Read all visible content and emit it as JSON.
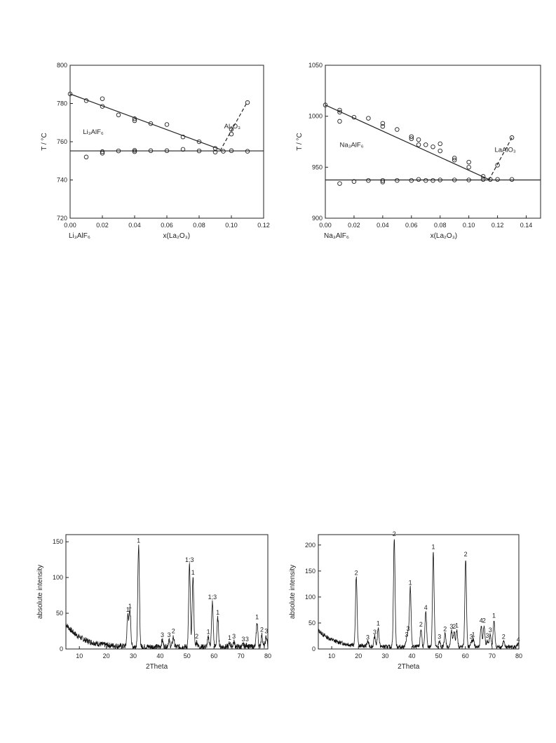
{
  "chart_data": [
    {
      "id": "li",
      "type": "scatter",
      "title": "",
      "xlabel": "x(La₂O₃)",
      "ylabel": "T / °C",
      "origin_label": "Li₃AlF₆",
      "xlim": [
        0,
        0.12
      ],
      "ylim": [
        720,
        800
      ],
      "xticks": [
        "0.00",
        "0.02",
        "0.04",
        "0.06",
        "0.08",
        "0.10",
        "0.12"
      ],
      "yticks": [
        "720",
        "740",
        "760",
        "780",
        "800"
      ],
      "annotations": [
        {
          "text": "Li₃AlF₆",
          "x": 0.008,
          "y": 764
        },
        {
          "text": "Al₂O₃",
          "x": 0.0955,
          "y": 767
        }
      ],
      "series": [
        {
          "name": "liquidus",
          "points": [
            [
              0.0,
              785
            ],
            [
              0.01,
              781.5
            ],
            [
              0.02,
              782.5
            ],
            [
              0.02,
              778.5
            ],
            [
              0.03,
              774
            ],
            [
              0.04,
              772
            ],
            [
              0.04,
              771
            ],
            [
              0.05,
              769.5
            ],
            [
              0.06,
              769
            ],
            [
              0.07,
              762.5
            ],
            [
              0.08,
              760
            ],
            [
              0.09,
              756.5
            ],
            [
              0.1,
              766.5
            ],
            [
              0.1,
              764
            ],
            [
              0.11,
              780.5
            ]
          ]
        },
        {
          "name": "eutectic",
          "points": [
            [
              0.01,
              752
            ],
            [
              0.02,
              754
            ],
            [
              0.02,
              754.8
            ],
            [
              0.03,
              755.2
            ],
            [
              0.04,
              754.8
            ],
            [
              0.04,
              755.5
            ],
            [
              0.05,
              755.3
            ],
            [
              0.06,
              755.3
            ],
            [
              0.07,
              756
            ],
            [
              0.08,
              755.2
            ],
            [
              0.09,
              754.6
            ],
            [
              0.095,
              755
            ],
            [
              0.1,
              755.3
            ],
            [
              0.11,
              755
            ]
          ]
        }
      ],
      "lines": [
        {
          "style": "solid",
          "x": [
            0.0,
            0.093
          ],
          "y": [
            785,
            756
          ]
        },
        {
          "style": "solid",
          "x": [
            0.0,
            0.12
          ],
          "y": [
            755.2,
            755.2
          ]
        },
        {
          "style": "dashed",
          "x": [
            0.093,
            0.11
          ],
          "y": [
            755.2,
            781
          ]
        }
      ]
    },
    {
      "id": "na",
      "type": "scatter",
      "title": "",
      "xlabel": "x(La₂O₃)",
      "ylabel": "T / °C",
      "origin_label": "Na₃AlF₆",
      "xlim": [
        0,
        0.15
      ],
      "ylim": [
        900,
        1050
      ],
      "xticks": [
        "0.00",
        "0.02",
        "0.04",
        "0.06",
        "0.08",
        "0.10",
        "0.12",
        "0.14"
      ],
      "yticks": [
        "900",
        "950",
        "1000",
        "1050"
      ],
      "annotations": [
        {
          "text": "Na₃AlF₆",
          "x": 0.01,
          "y": 970
        },
        {
          "text": "LaAlO₃",
          "x": 0.118,
          "y": 965
        }
      ],
      "series": [
        {
          "name": "liquidus",
          "points": [
            [
              0.0,
              1011
            ],
            [
              0.01,
              1006
            ],
            [
              0.01,
              1004
            ],
            [
              0.01,
              995
            ],
            [
              0.02,
              999
            ],
            [
              0.03,
              998
            ],
            [
              0.04,
              993
            ],
            [
              0.04,
              990
            ],
            [
              0.05,
              987
            ],
            [
              0.06,
              980
            ],
            [
              0.06,
              978
            ],
            [
              0.065,
              977
            ],
            [
              0.065,
              972
            ],
            [
              0.07,
              972
            ],
            [
              0.075,
              970
            ],
            [
              0.08,
              973
            ],
            [
              0.08,
              966
            ],
            [
              0.09,
              959
            ],
            [
              0.09,
              957
            ],
            [
              0.1,
              955
            ],
            [
              0.1,
              950
            ],
            [
              0.11,
              941
            ],
            [
              0.12,
              952
            ],
            [
              0.13,
              979
            ]
          ]
        },
        {
          "name": "eutectic",
          "points": [
            [
              0.01,
              934
            ],
            [
              0.02,
              936
            ],
            [
              0.03,
              937
            ],
            [
              0.04,
              937
            ],
            [
              0.04,
              935.5
            ],
            [
              0.05,
              937
            ],
            [
              0.06,
              937
            ],
            [
              0.065,
              938
            ],
            [
              0.07,
              937
            ],
            [
              0.075,
              937
            ],
            [
              0.08,
              937.5
            ],
            [
              0.09,
              937.5
            ],
            [
              0.1,
              937.5
            ],
            [
              0.11,
              938
            ],
            [
              0.115,
              938
            ],
            [
              0.12,
              938
            ],
            [
              0.13,
              938
            ]
          ]
        }
      ],
      "lines": [
        {
          "style": "solid",
          "x": [
            0.0,
            0.114
          ],
          "y": [
            1011,
            938
          ]
        },
        {
          "style": "solid",
          "x": [
            0.0,
            0.15
          ],
          "y": [
            937.5,
            937.5
          ]
        },
        {
          "style": "dashed",
          "x": [
            0.114,
            0.13
          ],
          "y": [
            937.5,
            979
          ]
        }
      ]
    },
    {
      "id": "xrd1",
      "type": "line",
      "title": "",
      "xlabel": "2Theta",
      "ylabel": "absolute intensity",
      "xlim": [
        5,
        80
      ],
      "ylim": [
        0,
        160
      ],
      "xticks": [
        "10",
        "20",
        "30",
        "40",
        "50",
        "60",
        "70",
        "80"
      ],
      "yticks": [
        "0",
        "50",
        "100",
        "150"
      ],
      "peaks": [
        {
          "x": 28.0,
          "y": 48,
          "label": "1"
        },
        {
          "x": 28.8,
          "y": 53,
          "label": "1"
        },
        {
          "x": 32.0,
          "y": 145,
          "label": "1"
        },
        {
          "x": 40.8,
          "y": 13,
          "label": "3"
        },
        {
          "x": 43.3,
          "y": 13,
          "label": "3"
        },
        {
          "x": 44.9,
          "y": 18,
          "label": "2"
        },
        {
          "x": 50.9,
          "y": 118,
          "label": "1;3"
        },
        {
          "x": 52.2,
          "y": 100,
          "label": "1"
        },
        {
          "x": 53.6,
          "y": 11,
          "label": "2"
        },
        {
          "x": 57.9,
          "y": 17,
          "label": "1"
        },
        {
          "x": 59.4,
          "y": 66,
          "label": "1;3"
        },
        {
          "x": 61.4,
          "y": 44,
          "label": "1"
        },
        {
          "x": 65.8,
          "y": 9,
          "label": "1"
        },
        {
          "x": 67.4,
          "y": 11,
          "label": "3"
        },
        {
          "x": 70.9,
          "y": 7,
          "label": "3"
        },
        {
          "x": 72.3,
          "y": 7,
          "label": "3"
        },
        {
          "x": 76.0,
          "y": 38,
          "label": "1"
        },
        {
          "x": 77.8,
          "y": 20,
          "label": "2"
        },
        {
          "x": 79.4,
          "y": 18,
          "label": "3"
        }
      ]
    },
    {
      "id": "xrd2",
      "type": "line",
      "title": "",
      "xlabel": "2Theta",
      "ylabel": "absolute intensity",
      "xlim": [
        5,
        80
      ],
      "ylim": [
        0,
        220
      ],
      "xticks": [
        "10",
        "20",
        "30",
        "40",
        "50",
        "60",
        "70",
        "80"
      ],
      "yticks": [
        "0",
        "50",
        "100",
        "150",
        "200"
      ],
      "peaks": [
        {
          "x": 19.2,
          "y": 137,
          "label": "2"
        },
        {
          "x": 23.5,
          "y": 13,
          "label": "3"
        },
        {
          "x": 26.1,
          "y": 23,
          "label": "3"
        },
        {
          "x": 27.4,
          "y": 40,
          "label": "1"
        },
        {
          "x": 33.4,
          "y": 212,
          "label": "2"
        },
        {
          "x": 38.0,
          "y": 18,
          "label": "3"
        },
        {
          "x": 38.6,
          "y": 30,
          "label": "3"
        },
        {
          "x": 39.4,
          "y": 118,
          "label": "1"
        },
        {
          "x": 43.4,
          "y": 38,
          "label": "2"
        },
        {
          "x": 45.2,
          "y": 70,
          "label": "4"
        },
        {
          "x": 48.0,
          "y": 187,
          "label": "1"
        },
        {
          "x": 50.3,
          "y": 14,
          "label": "3"
        },
        {
          "x": 52.4,
          "y": 29,
          "label": "2"
        },
        {
          "x": 54.8,
          "y": 34,
          "label": "3"
        },
        {
          "x": 55.8,
          "y": 34,
          "label": "2"
        },
        {
          "x": 56.8,
          "y": 36,
          "label": "1"
        },
        {
          "x": 60.1,
          "y": 173,
          "label": "2"
        },
        {
          "x": 62.2,
          "y": 14,
          "label": "3"
        },
        {
          "x": 63.0,
          "y": 18,
          "label": "1"
        },
        {
          "x": 65.9,
          "y": 45,
          "label": "4"
        },
        {
          "x": 67.0,
          "y": 45,
          "label": "2"
        },
        {
          "x": 68.2,
          "y": 16,
          "label": "3"
        },
        {
          "x": 69.3,
          "y": 27,
          "label": "3"
        },
        {
          "x": 70.7,
          "y": 55,
          "label": "1"
        },
        {
          "x": 74.3,
          "y": 14,
          "label": "2"
        },
        {
          "x": 79.8,
          "y": 9,
          "label": "4"
        }
      ]
    }
  ]
}
